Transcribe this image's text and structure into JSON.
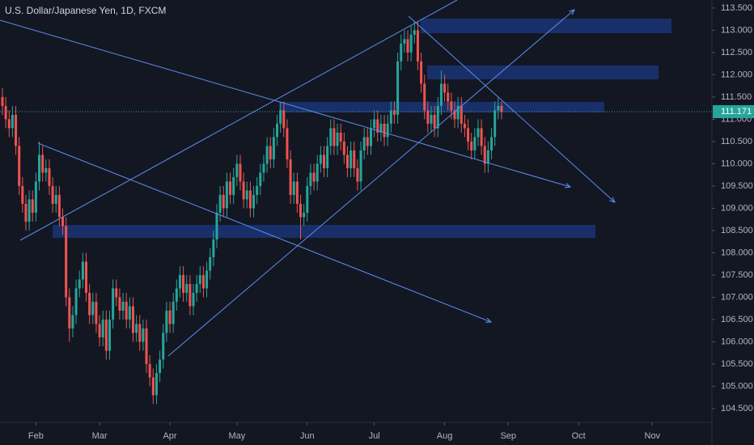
{
  "chart_data": {
    "type": "candlestick",
    "title": "U.S. Dollar/Japanese Yen, 1D, FXCM",
    "x": [
      0,
      1,
      2,
      3,
      4,
      5,
      6,
      7,
      8,
      9,
      10,
      11,
      12,
      13,
      14,
      15,
      16,
      17,
      18,
      19,
      20,
      21,
      22,
      23,
      24,
      25,
      26,
      27,
      28,
      29,
      30,
      31,
      32,
      33,
      34,
      35,
      36,
      37,
      38,
      39,
      40,
      41,
      42,
      43,
      44,
      45,
      46,
      47,
      48,
      49,
      50,
      51,
      52,
      53,
      54,
      55,
      56,
      57,
      58,
      59,
      60,
      61,
      62,
      63,
      64,
      65,
      66,
      67,
      68,
      69,
      70,
      71,
      72,
      73,
      74,
      75,
      76,
      77,
      78,
      79,
      80,
      81,
      82,
      83,
      84,
      85,
      86,
      87,
      88,
      89,
      90,
      91,
      92,
      93,
      94,
      95,
      96,
      97,
      98,
      99,
      100,
      101,
      102,
      103,
      104,
      105,
      106,
      107,
      108,
      109,
      110,
      111,
      112,
      113,
      114,
      115,
      116,
      117,
      118,
      119,
      120,
      121,
      122,
      123,
      124,
      125,
      126,
      127,
      128,
      129,
      130,
      131,
      132,
      133,
      134,
      135,
      136,
      137,
      138,
      139,
      140,
      141,
      142,
      143,
      144,
      145,
      146,
      147,
      148,
      149
    ],
    "open": [
      111.5,
      111.3,
      111.0,
      110.8,
      111.1,
      110.4,
      109.5,
      109.1,
      108.7,
      109.2,
      108.9,
      109.6,
      110.2,
      109.8,
      109.9,
      109.5,
      109.1,
      109.3,
      108.8,
      108.6,
      107.0,
      106.3,
      106.6,
      107.2,
      107.4,
      107.8,
      107.1,
      106.6,
      106.9,
      106.4,
      106.1,
      106.5,
      105.8,
      106.5,
      107.2,
      107.0,
      106.7,
      106.9,
      106.5,
      106.8,
      106.2,
      106.4,
      106.0,
      106.3,
      105.5,
      105.2,
      104.8,
      105.3,
      105.6,
      106.2,
      106.7,
      106.4,
      106.9,
      107.2,
      107.5,
      107.1,
      107.3,
      106.8,
      107.1,
      107.3,
      107.5,
      107.2,
      107.6,
      107.9,
      108.3,
      108.9,
      109.3,
      109.0,
      109.6,
      109.3,
      109.7,
      110.0,
      109.6,
      109.2,
      109.4,
      109.0,
      109.3,
      109.5,
      109.8,
      110.0,
      110.4,
      110.1,
      110.6,
      110.9,
      111.2,
      110.8,
      110.1,
      109.3,
      109.6,
      109.1,
      108.8,
      108.9,
      109.5,
      109.8,
      109.6,
      110.0,
      110.2,
      109.9,
      110.4,
      110.8,
      110.4,
      110.7,
      110.5,
      110.2,
      109.9,
      110.3,
      109.9,
      109.6,
      110.3,
      110.6,
      110.4,
      110.8,
      111.0,
      110.7,
      110.9,
      110.6,
      110.9,
      111.2,
      111.1,
      112.3,
      112.7,
      112.8,
      112.5,
      112.9,
      113.0,
      112.3,
      111.8,
      111.2,
      110.9,
      111.1,
      110.8,
      111.3,
      111.8,
      111.6,
      111.4,
      111.2,
      111.0,
      111.3,
      110.9,
      110.8,
      110.5,
      110.3,
      110.6,
      110.8,
      110.4,
      110.0,
      110.3,
      110.6,
      111.2,
      111.3
    ],
    "high": [
      111.7,
      111.5,
      111.2,
      111.3,
      111.3,
      110.6,
      109.7,
      109.3,
      109.4,
      109.4,
      109.8,
      110.5,
      110.4,
      110.1,
      110.1,
      109.7,
      109.5,
      109.5,
      109.0,
      108.8,
      107.2,
      106.8,
      107.4,
      107.6,
      108.0,
      108.0,
      107.3,
      107.1,
      107.1,
      106.6,
      106.7,
      106.7,
      106.7,
      107.4,
      107.4,
      107.2,
      107.1,
      107.1,
      107.0,
      107.0,
      106.6,
      106.6,
      106.5,
      106.5,
      105.7,
      105.4,
      105.5,
      105.8,
      106.4,
      106.9,
      106.9,
      107.1,
      107.4,
      107.7,
      107.7,
      107.5,
      107.5,
      107.3,
      107.5,
      107.7,
      107.7,
      107.8,
      108.1,
      108.5,
      109.1,
      109.5,
      109.5,
      109.8,
      109.8,
      109.9,
      110.2,
      110.2,
      109.8,
      109.6,
      109.6,
      109.5,
      109.7,
      110.0,
      110.2,
      110.6,
      110.6,
      110.8,
      111.1,
      111.4,
      111.4,
      111.0,
      110.3,
      109.8,
      109.8,
      109.3,
      109.1,
      109.7,
      110.0,
      110.0,
      110.2,
      110.4,
      110.4,
      110.6,
      111.0,
      111.0,
      110.9,
      110.9,
      110.7,
      110.4,
      110.5,
      110.5,
      110.1,
      110.5,
      110.8,
      110.8,
      111.0,
      111.2,
      111.2,
      111.1,
      111.1,
      111.1,
      111.4,
      111.4,
      112.5,
      112.9,
      113.0,
      113.0,
      113.1,
      113.2,
      113.2,
      112.5,
      112.0,
      111.4,
      111.3,
      111.3,
      111.5,
      112.1,
      112.0,
      111.8,
      111.6,
      111.4,
      111.5,
      111.5,
      111.1,
      111.0,
      110.7,
      110.8,
      111.0,
      111.0,
      110.6,
      110.5,
      110.8,
      111.4,
      111.5,
      111.4
    ],
    "low": [
      111.1,
      110.8,
      110.6,
      110.6,
      110.2,
      109.3,
      108.9,
      108.5,
      108.5,
      108.7,
      108.7,
      109.4,
      109.6,
      109.6,
      109.3,
      108.9,
      108.9,
      108.6,
      108.4,
      106.8,
      106.0,
      106.1,
      106.4,
      107.0,
      107.2,
      106.9,
      106.4,
      106.4,
      106.2,
      105.9,
      105.9,
      105.6,
      105.6,
      106.3,
      106.8,
      106.5,
      106.5,
      106.3,
      106.3,
      106.0,
      106.0,
      105.8,
      105.8,
      105.3,
      105.0,
      104.6,
      104.6,
      105.1,
      105.4,
      106.0,
      106.2,
      106.2,
      106.7,
      107.0,
      106.9,
      106.9,
      106.6,
      106.6,
      106.9,
      107.1,
      107.0,
      107.0,
      107.4,
      107.7,
      108.1,
      108.7,
      108.8,
      108.8,
      109.1,
      109.1,
      109.5,
      109.4,
      109.0,
      109.0,
      108.8,
      108.8,
      109.1,
      109.3,
      109.6,
      109.8,
      109.9,
      109.9,
      110.4,
      110.7,
      110.6,
      109.9,
      109.1,
      109.1,
      108.9,
      108.3,
      108.6,
      108.7,
      109.3,
      109.4,
      109.4,
      109.8,
      109.7,
      109.7,
      110.2,
      110.2,
      110.2,
      110.3,
      110.0,
      109.7,
      109.7,
      109.7,
      109.4,
      109.4,
      110.1,
      110.2,
      110.2,
      110.6,
      110.5,
      110.5,
      110.4,
      110.4,
      110.7,
      110.9,
      110.9,
      112.1,
      112.5,
      112.3,
      112.3,
      112.7,
      112.1,
      111.6,
      111.0,
      110.7,
      110.7,
      110.6,
      110.6,
      111.1,
      111.4,
      111.2,
      111.0,
      110.8,
      110.8,
      110.7,
      110.6,
      110.3,
      110.1,
      110.1,
      110.4,
      110.2,
      109.8,
      109.8,
      110.1,
      110.4,
      111.0,
      111.0
    ],
    "close": [
      111.3,
      111.0,
      110.8,
      111.1,
      110.4,
      109.5,
      109.1,
      108.7,
      109.2,
      108.9,
      109.6,
      110.2,
      109.8,
      109.9,
      109.5,
      109.1,
      109.3,
      108.8,
      108.6,
      107.0,
      106.3,
      106.6,
      107.2,
      107.4,
      107.8,
      107.1,
      106.6,
      106.9,
      106.4,
      106.1,
      106.5,
      105.8,
      106.5,
      107.2,
      107.0,
      106.7,
      106.9,
      106.5,
      106.8,
      106.2,
      106.4,
      106.0,
      106.3,
      105.5,
      105.2,
      104.8,
      105.3,
      105.6,
      106.2,
      106.7,
      106.4,
      106.9,
      107.2,
      107.5,
      107.1,
      107.3,
      106.8,
      107.1,
      107.3,
      107.5,
      107.2,
      107.6,
      107.9,
      108.3,
      108.9,
      109.3,
      109.0,
      109.6,
      109.3,
      109.7,
      110.0,
      109.6,
      109.2,
      109.4,
      109.0,
      109.3,
      109.5,
      109.8,
      110.0,
      110.4,
      110.1,
      110.6,
      110.9,
      111.2,
      110.8,
      110.1,
      109.3,
      109.6,
      109.1,
      108.8,
      108.9,
      109.5,
      109.8,
      109.6,
      110.0,
      110.2,
      109.9,
      110.4,
      110.8,
      110.4,
      110.7,
      110.5,
      110.2,
      109.9,
      110.3,
      109.9,
      109.6,
      110.3,
      110.6,
      110.4,
      110.8,
      111.0,
      110.7,
      110.9,
      110.6,
      110.9,
      111.2,
      111.1,
      112.3,
      112.7,
      112.8,
      112.5,
      112.9,
      113.0,
      112.3,
      111.8,
      111.2,
      110.9,
      111.1,
      110.8,
      111.3,
      111.8,
      111.6,
      111.4,
      111.2,
      111.0,
      111.3,
      110.9,
      110.8,
      110.5,
      110.3,
      110.6,
      110.8,
      110.4,
      110.0,
      110.3,
      110.6,
      111.2,
      111.3,
      111.171
    ],
    "up_color": "#26a69a",
    "down_color": "#ef5350",
    "last_price": 111.171,
    "xlim": [
      -0.72,
      211.8
    ],
    "xticks": [
      {
        "value": 10,
        "label": "Feb"
      },
      {
        "value": 29,
        "label": "Mar"
      },
      {
        "value": 50,
        "label": "Apr"
      },
      {
        "value": 70,
        "label": "May"
      },
      {
        "value": 91,
        "label": "Jun"
      },
      {
        "value": 111,
        "label": "Jul"
      },
      {
        "value": 132,
        "label": "Aug"
      },
      {
        "value": 151,
        "label": "Sep"
      },
      {
        "value": 172,
        "label": "Oct"
      },
      {
        "value": 194,
        "label": "Nov"
      }
    ],
    "ylim": [
      104.19,
      113.68
    ],
    "yticks": [
      {
        "value": 104.5,
        "label": "104.500"
      },
      {
        "value": 105,
        "label": "105.000"
      },
      {
        "value": 105.5,
        "label": "105.500"
      },
      {
        "value": 106,
        "label": "106.000"
      },
      {
        "value": 106.5,
        "label": "106.500"
      },
      {
        "value": 107,
        "label": "107.000"
      },
      {
        "value": 107.5,
        "label": "107.500"
      },
      {
        "value": 108,
        "label": "108.000"
      },
      {
        "value": 108.5,
        "label": "108.500"
      },
      {
        "value": 109,
        "label": "109.000"
      },
      {
        "value": 109.5,
        "label": "109.500"
      },
      {
        "value": 110,
        "label": "110.000"
      },
      {
        "value": 110.5,
        "label": "110.500"
      },
      {
        "value": 111,
        "label": "111.000"
      },
      {
        "value": 111.5,
        "label": "111.500"
      },
      {
        "value": 112,
        "label": "112.000"
      },
      {
        "value": 112.5,
        "label": "112.500"
      },
      {
        "value": 113,
        "label": "113.000"
      },
      {
        "value": 113.5,
        "label": "113.500"
      }
    ]
  }
}
